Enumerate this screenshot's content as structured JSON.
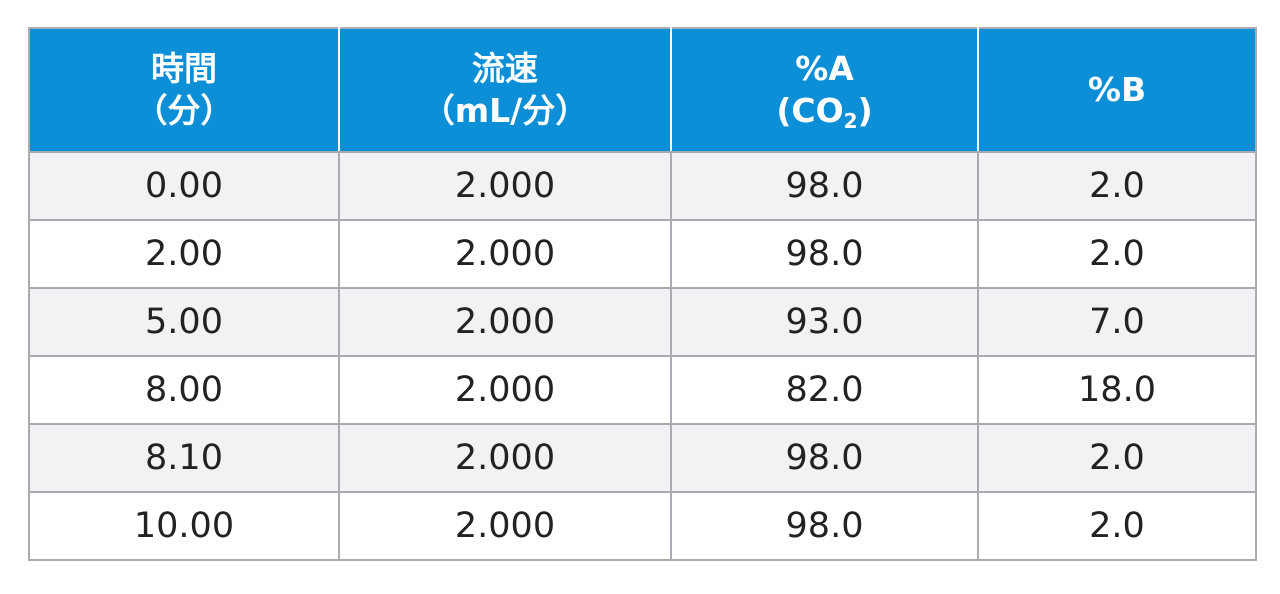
{
  "table": {
    "headers": [
      {
        "line1": "時間",
        "line2": "（分）"
      },
      {
        "line1": "流速",
        "line2": "（mL/分）"
      },
      {
        "line1": "%A",
        "line2_prefix": "(CO",
        "line2_sub": "2",
        "line2_suffix": ")"
      },
      {
        "line1": "%B"
      }
    ],
    "rows": [
      [
        "0.00",
        "2.000",
        "98.0",
        "2.0"
      ],
      [
        "2.00",
        "2.000",
        "98.0",
        "2.0"
      ],
      [
        "5.00",
        "2.000",
        "93.0",
        "7.0"
      ],
      [
        "8.00",
        "2.000",
        "82.0",
        "18.0"
      ],
      [
        "8.10",
        "2.000",
        "98.0",
        "2.0"
      ],
      [
        "10.00",
        "2.000",
        "98.0",
        "2.0"
      ]
    ]
  },
  "colors": {
    "header_bg": "#0c8fd6",
    "header_text": "#ffffff",
    "row_alt_bg": "#f2f2f4",
    "border": "#a8acb2"
  }
}
